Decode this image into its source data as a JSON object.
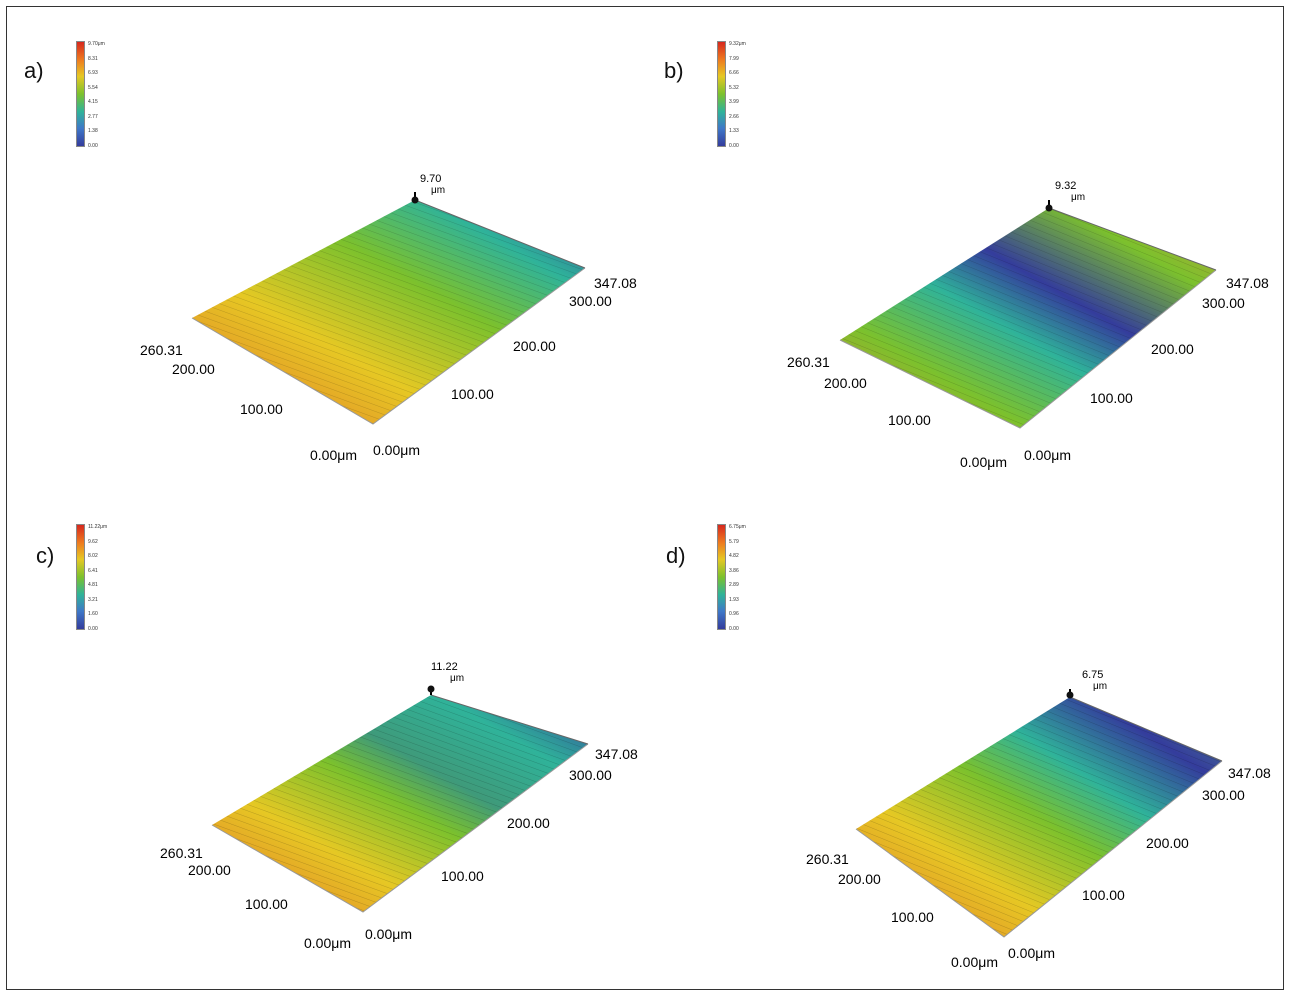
{
  "panels": [
    {
      "label": "a)",
      "colorbar_ticks": [
        "9.70μm",
        "8.31",
        "6.93",
        "5.54",
        "4.15",
        "2.77",
        "1.38",
        "0.00"
      ],
      "z_max": "9.70",
      "z_unit": "μm",
      "x_ticks": [
        "0.00μm",
        "100.00",
        "200.00",
        "300.00",
        "347.08"
      ],
      "y_ticks": [
        "0.00μm",
        "100.00",
        "200.00",
        "260.31"
      ],
      "gradient": [
        "#343c9c",
        "#2fb39a",
        "#7cc12d",
        "#e6c824",
        "#ee8a2f"
      ]
    },
    {
      "label": "b)",
      "colorbar_ticks": [
        "9.32μm",
        "7.99",
        "6.66",
        "5.32",
        "3.99",
        "2.66",
        "1.33",
        "0.00"
      ],
      "z_max": "9.32",
      "z_unit": "μm",
      "x_ticks": [
        "0.00μm",
        "100.00",
        "200.00",
        "300.00",
        "347.08"
      ],
      "y_ticks": [
        "0.00μm",
        "100.00",
        "200.00",
        "260.31"
      ],
      "gradient": [
        "#b58b3a",
        "#7cc12d",
        "#343c9c",
        "#2fb39a",
        "#7cc12d",
        "#d98a2f"
      ]
    },
    {
      "label": "c)",
      "colorbar_ticks": [
        "11.22μm",
        "9.62",
        "8.02",
        "6.41",
        "4.81",
        "3.21",
        "1.60",
        "0.00"
      ],
      "z_max": "11.22",
      "z_unit": "μm",
      "x_ticks": [
        "0.00μm",
        "100.00",
        "200.00",
        "300.00",
        "347.08"
      ],
      "y_ticks": [
        "0.00μm",
        "100.00",
        "200.00",
        "260.31"
      ],
      "gradient": [
        "#343c9c",
        "#2fb39a",
        "#3f9a7a",
        "#7cc12d",
        "#e6c824",
        "#e2702a"
      ]
    },
    {
      "label": "d)",
      "colorbar_ticks": [
        "6.75μm",
        "5.79",
        "4.82",
        "3.86",
        "2.89",
        "1.93",
        "0.96",
        "0.00"
      ],
      "z_max": "6.75",
      "z_unit": "μm",
      "x_ticks": [
        "0.00μm",
        "100.00",
        "200.00",
        "300.00",
        "347.08"
      ],
      "y_ticks": [
        "0.00μm",
        "100.00",
        "200.00",
        "260.31"
      ],
      "gradient": [
        "#5a7fa0",
        "#343c9c",
        "#2fb39a",
        "#7cc12d",
        "#e6c824",
        "#e2702a"
      ]
    }
  ]
}
